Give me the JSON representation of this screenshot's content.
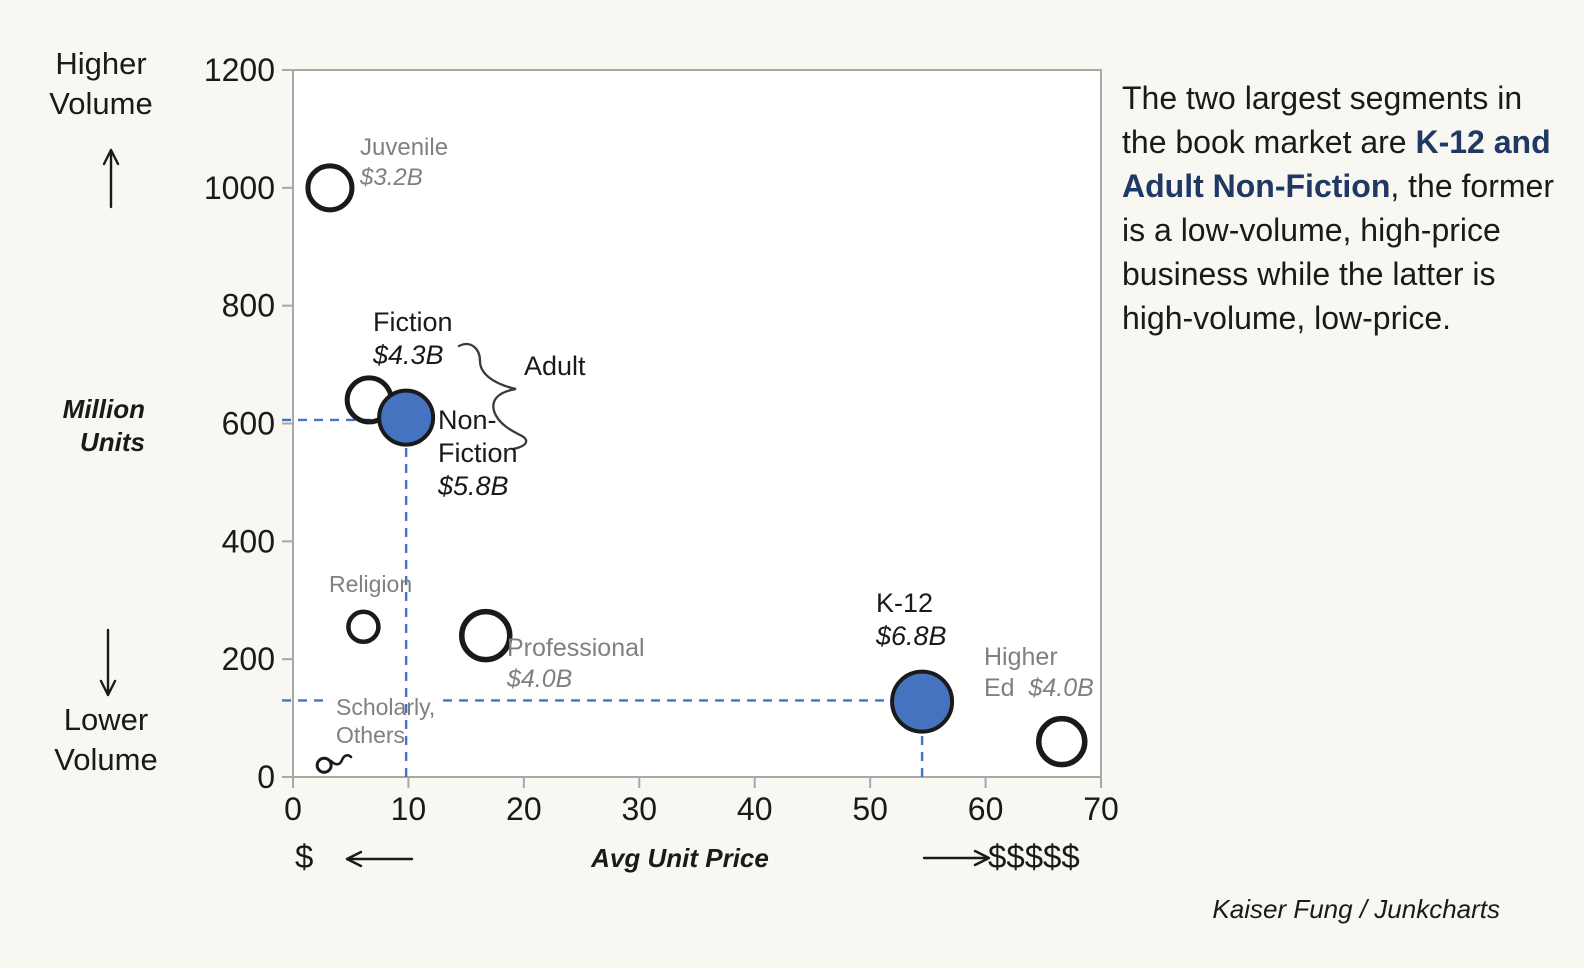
{
  "annotations": {
    "higher_volume": {
      "line1": "Higher",
      "line2": "Volume"
    },
    "lower_volume": {
      "line1": "Lower",
      "line2": "Volume"
    },
    "million_units": {
      "line1": "Million",
      "line2": "Units"
    },
    "price_low": "$",
    "price_high": "$$$$$",
    "x_axis_title": "Avg Unit Price",
    "credit": "Kaiser Fung / Junkcharts"
  },
  "side_text": {
    "pre": "The two largest segments in the book market are ",
    "bold": "K-12 and Adult Non-Fiction",
    "post": ", the former is a low-volume, high-price business while the latter is high-volume, low-price."
  },
  "labels": {
    "juvenile": {
      "name": "Juvenile",
      "value": "$3.2B"
    },
    "fiction": {
      "name": "Fiction",
      "value": "$4.3B"
    },
    "adult": {
      "name": "Adult"
    },
    "nonfiction": {
      "l1": "Non-",
      "l2": "Fiction",
      "value": "$5.8B"
    },
    "religion": {
      "name": "Religion"
    },
    "professional": {
      "name": "Professional",
      "value": "$4.0B"
    },
    "scholarly": {
      "l1": "Scholarly,",
      "l2": "Others"
    },
    "k12": {
      "name": "K-12",
      "value": "$6.8B"
    },
    "higher_ed": {
      "l1": "Higher",
      "l2": "Ed",
      "value": "$4.0B"
    }
  },
  "chart_data": {
    "type": "scatter",
    "title": "Book market segments: volume vs average unit price",
    "xlabel": "Avg Unit Price",
    "ylabel": "Million Units",
    "xlim": [
      0,
      70
    ],
    "ylim": [
      0,
      1200
    ],
    "x_ticks": [
      0,
      10,
      20,
      30,
      40,
      50,
      60,
      70
    ],
    "y_ticks": [
      0,
      200,
      400,
      600,
      800,
      1000,
      1200
    ],
    "grid": false,
    "points": [
      {
        "id": "juvenile",
        "label": "Juvenile",
        "revenue": "$3.2B",
        "price": 3.2,
        "volume": 1000,
        "style": "open",
        "r": 22,
        "sw": 5
      },
      {
        "id": "fiction",
        "label": "Fiction",
        "revenue": "$4.3B",
        "price": 6.6,
        "volume": 640,
        "style": "open",
        "r": 22,
        "sw": 5
      },
      {
        "id": "adult_nonfiction",
        "label": "Adult Non-Fiction",
        "revenue": "$5.8B",
        "price": 9.8,
        "volume": 610,
        "style": "filled",
        "r": 27,
        "sw": 4
      },
      {
        "id": "religion",
        "label": "Religion",
        "revenue": "",
        "price": 6.1,
        "volume": 255,
        "style": "open",
        "r": 15,
        "sw": 4.5
      },
      {
        "id": "professional",
        "label": "Professional",
        "revenue": "$4.0B",
        "price": 16.7,
        "volume": 240,
        "style": "open",
        "r": 24,
        "sw": 5.5
      },
      {
        "id": "scholarly_others",
        "label": "Scholarly, Others",
        "revenue": "",
        "price": 2.7,
        "volume": 20,
        "style": "open",
        "r": 7,
        "sw": 3
      },
      {
        "id": "k12",
        "label": "K-12",
        "revenue": "$6.8B",
        "price": 54.5,
        "volume": 128,
        "style": "filled",
        "r": 30,
        "sw": 4
      },
      {
        "id": "higher_ed",
        "label": "Higher Ed",
        "revenue": "$4.0B",
        "price": 66.6,
        "volume": 60,
        "style": "open",
        "r": 23,
        "sw": 5.5
      }
    ],
    "guides": [
      {
        "type": "h",
        "y": 606,
        "x1": -0.95,
        "x2": 8.0
      },
      {
        "type": "v",
        "x": 9.8,
        "y1": 0,
        "y2": 560
      },
      {
        "type": "h",
        "y": 130,
        "x1": -0.95,
        "x2": 3.2
      },
      {
        "type": "h",
        "y": 130,
        "x1": 13.0,
        "x2": 52.0
      },
      {
        "type": "v",
        "x": 54.5,
        "y1": 0,
        "y2": 75
      }
    ],
    "colors": {
      "background": "#f8f7f2",
      "plot_background": "#ffffff",
      "axis": "#a8a8a8",
      "bubble_fill": "#4673bf",
      "bubble_stroke": "#1a1a1a",
      "dash": "#4472c4",
      "label_gray": "#808080",
      "label_black": "#1a1a1a",
      "accent_navy": "#1f3864"
    }
  }
}
